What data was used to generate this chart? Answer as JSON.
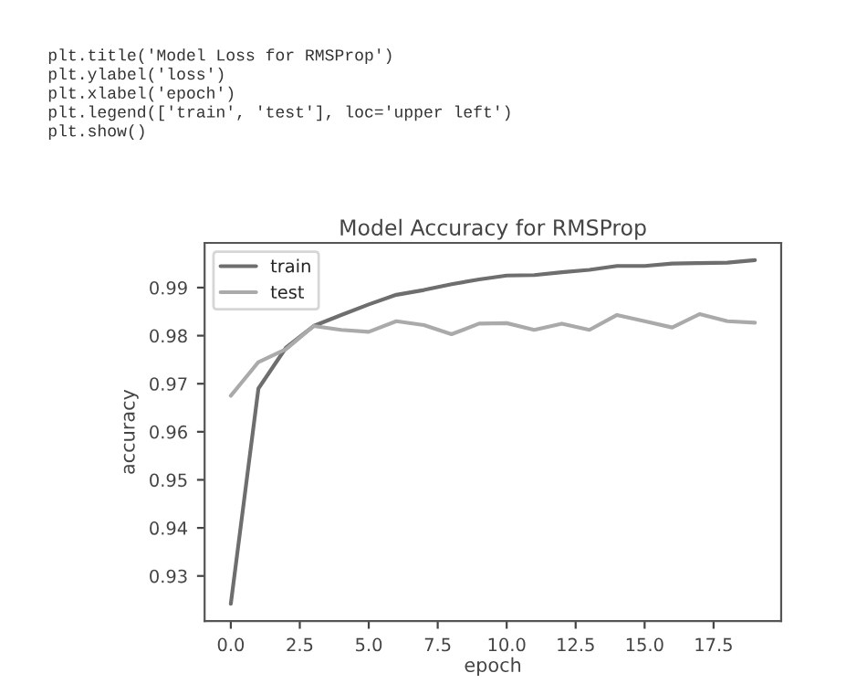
{
  "chart_data": {
    "type": "line",
    "title": "Model Accuracy for RMSProp",
    "xlabel": "epoch",
    "ylabel": "accuracy",
    "annotations": [
      "plt.title('Model Loss for RMSProp')\nplt.ylabel('loss')\nplt.xlabel('epoch')\nplt.legend(['train', 'test'], loc='upper left')\nplt.show()"
    ],
    "x": [
      0,
      1,
      2,
      3,
      4,
      5,
      6,
      7,
      8,
      9,
      10,
      11,
      12,
      13,
      14,
      15,
      16,
      17,
      18,
      19
    ],
    "series": [
      {
        "name": "train",
        "color": "#6e6e6e",
        "values": [
          0.9242,
          0.969,
          0.9775,
          0.982,
          0.9843,
          0.9865,
          0.9885,
          0.9895,
          0.9907,
          0.9917,
          0.9925,
          0.9926,
          0.9932,
          0.9937,
          0.9945,
          0.9945,
          0.995,
          0.9951,
          0.9952,
          0.9957
        ]
      },
      {
        "name": "test",
        "color": "#aaaaaa",
        "values": [
          0.9675,
          0.9745,
          0.9772,
          0.982,
          0.9812,
          0.9808,
          0.983,
          0.9822,
          0.9803,
          0.9825,
          0.9826,
          0.9812,
          0.9825,
          0.9812,
          0.9843,
          0.983,
          0.9817,
          0.9845,
          0.983,
          0.9827
        ]
      }
    ],
    "xlim": [
      -0.95,
      19.95
    ],
    "ylim": [
      0.9206,
      0.9993
    ],
    "xticks": [
      {
        "value": 0,
        "label": "0.0"
      },
      {
        "value": 2.5,
        "label": "2.5"
      },
      {
        "value": 5,
        "label": "5.0"
      },
      {
        "value": 7.5,
        "label": "7.5"
      },
      {
        "value": 10,
        "label": "10.0"
      },
      {
        "value": 12.5,
        "label": "12.5"
      },
      {
        "value": 15,
        "label": "15.0"
      },
      {
        "value": 17.5,
        "label": "17.5"
      }
    ],
    "yticks": [
      0.93,
      0.94,
      0.95,
      0.96,
      0.97,
      0.98,
      0.99
    ],
    "legend": "top left",
    "grid": false,
    "line_style": "solid",
    "marker": "none"
  }
}
